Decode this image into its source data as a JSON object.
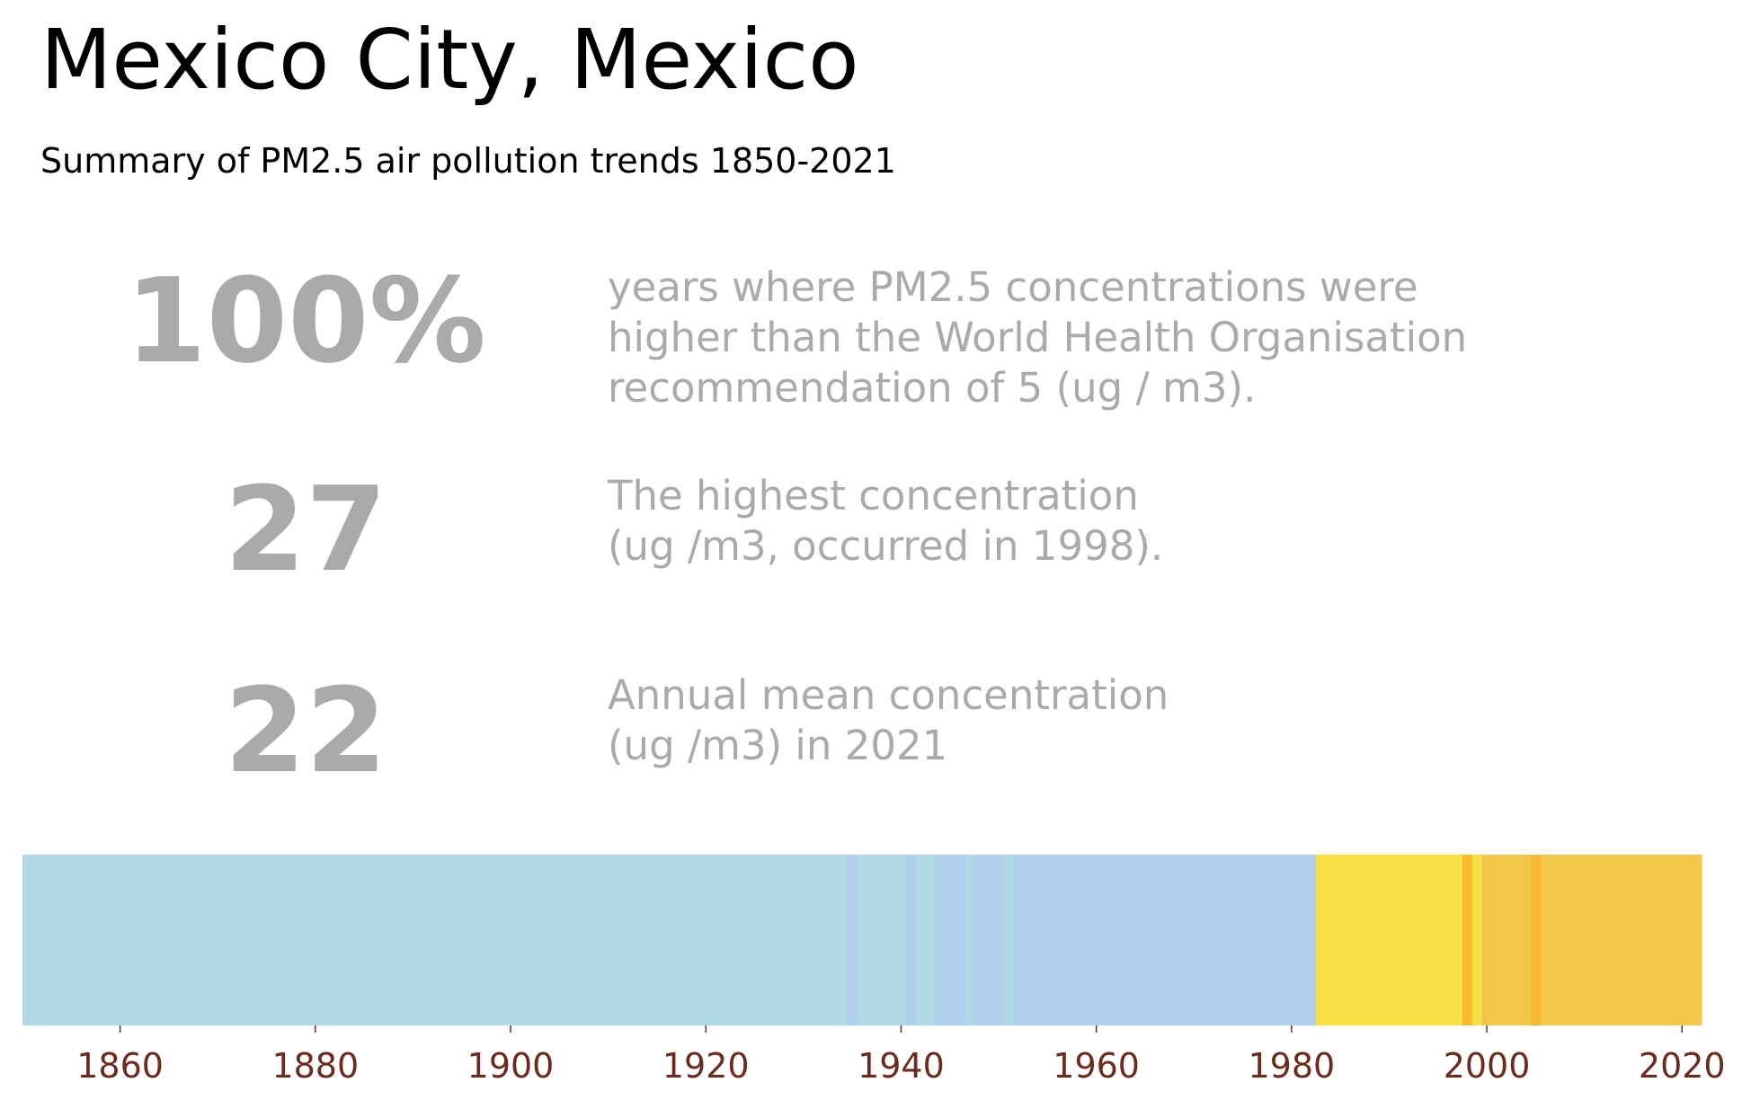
{
  "title": "Mexico City, Mexico",
  "subtitle": "Summary of PM2.5 air pollution trends 1850-2021",
  "stats": [
    {
      "value": "100%",
      "description": "years where PM2.5 concentrations were\nhigher than the World Health Organisation\nrecommendation of 5 (ug / m3)."
    },
    {
      "value": "27",
      "description": "The highest concentration\n(ug /m3, occurred in 1998)."
    },
    {
      "value": "22",
      "description": "Annual mean concentration\n(ug /m3) in 2021"
    }
  ],
  "chart_data": {
    "type": "heatmap",
    "x_range": [
      1850,
      2022
    ],
    "xticks": [
      1860,
      1880,
      1900,
      1920,
      1940,
      1960,
      1980,
      2000,
      2020
    ],
    "segments": [
      {
        "start": 1850,
        "end": 1934.5,
        "color": "#b0d9e8"
      },
      {
        "start": 1934.5,
        "end": 1935.5,
        "color": "#b0cfec"
      },
      {
        "start": 1935.5,
        "end": 1940.5,
        "color": "#b0d9e8"
      },
      {
        "start": 1940.5,
        "end": 1941.5,
        "color": "#b0cfec"
      },
      {
        "start": 1941.5,
        "end": 1943.5,
        "color": "#b0d9e8"
      },
      {
        "start": 1943.5,
        "end": 1946.5,
        "color": "#b0cfec"
      },
      {
        "start": 1946.5,
        "end": 1947.5,
        "color": "#b0d9e8"
      },
      {
        "start": 1947.5,
        "end": 1950.5,
        "color": "#b0cfec"
      },
      {
        "start": 1950.5,
        "end": 1951.5,
        "color": "#b0d9e8"
      },
      {
        "start": 1951.5,
        "end": 1982.5,
        "color": "#b0cfec"
      },
      {
        "start": 1982.5,
        "end": 1997.5,
        "color": "#f8df44"
      },
      {
        "start": 1997.5,
        "end": 1998.5,
        "color": "#f8b830"
      },
      {
        "start": 1998.5,
        "end": 1999.5,
        "color": "#f8df44"
      },
      {
        "start": 1999.5,
        "end": 2004.5,
        "color": "#f2c74a"
      },
      {
        "start": 2004.5,
        "end": 2005.5,
        "color": "#f8b830"
      },
      {
        "start": 2005.5,
        "end": 2022,
        "color": "#f2c74a"
      }
    ]
  }
}
